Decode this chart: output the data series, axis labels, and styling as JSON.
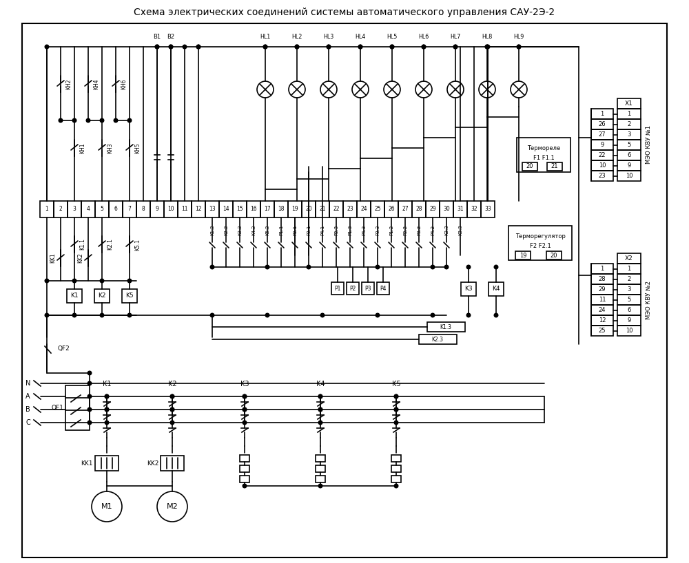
{
  "title": "Схема электрических соединений системы автоматического управления САУ-2Э-2",
  "title_fontsize": 10,
  "bg_color": "#ffffff",
  "line_color": "#000000",
  "hl_labels": [
    "HL1",
    "HL2",
    "HL3",
    "HL4",
    "HL5",
    "HL6",
    "HL7",
    "HL8",
    "HL9"
  ],
  "button_labels": [
    "B1",
    "B2"
  ],
  "kh_top_labels": [
    "KH2",
    "KH4",
    "KH6"
  ],
  "kh_bot_labels": [
    "KH1",
    "KH3",
    "KH5"
  ],
  "relay_labels_below": [
    "K1.2",
    "K2.2",
    "K3.2",
    "K4.2",
    "K5.2",
    "P1.1",
    "P2.1",
    "P3.1",
    "P4.1",
    "P2.3",
    "P1.3",
    "P4.3",
    "P3.3",
    "P1.2",
    "P2.2",
    "P3.2",
    "P4.2",
    "K3.3"
  ],
  "x1_rows": [
    "1",
    "26",
    "27",
    "9",
    "22",
    "10",
    "23"
  ],
  "x1_cols": [
    "1",
    "2",
    "3",
    "5",
    "6",
    "9",
    "10"
  ],
  "x2_rows": [
    "1",
    "28",
    "29",
    "11",
    "24",
    "12",
    "25"
  ],
  "x2_cols": [
    "1",
    "2",
    "3",
    "5",
    "6",
    "9",
    "10"
  ],
  "thermorelay_label1": "Термореле",
  "thermorelay_label2": "F1 F1.1",
  "thermoreg_label1": "Терморегулятор",
  "thermoreg_label2": "F2 F2.1",
  "meo_kvu1": "МЭО КВУ №1",
  "meo_kvu2": "МЭО КВУ №2",
  "qf1_label": "QF1",
  "qf2_label": "QF2",
  "motor_labels": [
    "M1",
    "M2"
  ],
  "contactor_labels": [
    "K1",
    "K2",
    "K3",
    "K4",
    "K5"
  ],
  "thermal_relay_labels": [
    "KK1",
    "KK2"
  ],
  "phase_labels": [
    "N",
    "A",
    "B",
    "C"
  ],
  "k1_label": "K1.1",
  "k2_label": "K2.1",
  "k5_label": "K5.1",
  "kk1_label": "KK1",
  "kk2_label": "KK2",
  "relay_boxes": [
    "K1",
    "K2",
    "K5"
  ],
  "pressure_sensors": [
    "P1",
    "P2",
    "P3",
    "P4"
  ],
  "k3_label": "K3",
  "k4_label": "K4",
  "k13_label": "K1.3",
  "k23_label": "K2.3",
  "k33_label": "K3.3"
}
